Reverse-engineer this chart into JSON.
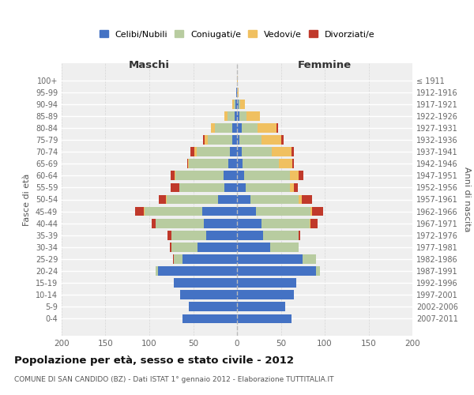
{
  "age_groups": [
    "0-4",
    "5-9",
    "10-14",
    "15-19",
    "20-24",
    "25-29",
    "30-34",
    "35-39",
    "40-44",
    "45-49",
    "50-54",
    "55-59",
    "60-64",
    "65-69",
    "70-74",
    "75-79",
    "80-84",
    "85-89",
    "90-94",
    "95-99",
    "100+"
  ],
  "birth_years": [
    "2007-2011",
    "2002-2006",
    "1997-2001",
    "1992-1996",
    "1987-1991",
    "1982-1986",
    "1977-1981",
    "1972-1976",
    "1967-1971",
    "1962-1966",
    "1957-1961",
    "1952-1956",
    "1947-1951",
    "1942-1946",
    "1937-1941",
    "1932-1936",
    "1927-1931",
    "1922-1926",
    "1917-1921",
    "1912-1916",
    "≤ 1911"
  ],
  "maschi": {
    "celibi": [
      62,
      55,
      65,
      72,
      90,
      62,
      45,
      35,
      38,
      40,
      22,
      14,
      15,
      10,
      8,
      5,
      5,
      3,
      2,
      1,
      0
    ],
    "coniugati": [
      0,
      0,
      0,
      0,
      3,
      10,
      30,
      40,
      55,
      65,
      58,
      52,
      55,
      45,
      38,
      28,
      20,
      8,
      2,
      0,
      0
    ],
    "vedovi": [
      0,
      0,
      0,
      0,
      0,
      0,
      0,
      0,
      0,
      1,
      1,
      0,
      1,
      1,
      3,
      4,
      5,
      3,
      1,
      0,
      0
    ],
    "divorziati": [
      0,
      0,
      0,
      0,
      0,
      1,
      2,
      4,
      4,
      10,
      8,
      10,
      5,
      1,
      4,
      2,
      0,
      0,
      0,
      0,
      0
    ]
  },
  "femmine": {
    "nubili": [
      62,
      55,
      65,
      68,
      90,
      75,
      38,
      30,
      28,
      22,
      15,
      10,
      8,
      6,
      5,
      3,
      5,
      3,
      2,
      0,
      0
    ],
    "coniugate": [
      0,
      0,
      0,
      0,
      5,
      15,
      32,
      40,
      55,
      62,
      55,
      50,
      52,
      42,
      35,
      25,
      18,
      8,
      2,
      0,
      0
    ],
    "vedove": [
      0,
      0,
      0,
      0,
      0,
      0,
      0,
      0,
      1,
      2,
      4,
      5,
      10,
      15,
      22,
      22,
      22,
      15,
      5,
      2,
      1
    ],
    "divorziate": [
      0,
      0,
      0,
      0,
      0,
      0,
      0,
      2,
      8,
      12,
      12,
      4,
      6,
      2,
      3,
      3,
      2,
      0,
      0,
      0,
      0
    ]
  },
  "colors": {
    "celibi": "#4472c4",
    "coniugati": "#b8cca0",
    "vedovi": "#f0c060",
    "divorziati": "#c0392b"
  },
  "legend_labels": [
    "Celibi/Nubili",
    "Coniugati/e",
    "Vedovi/e",
    "Divorziati/e"
  ],
  "title": "Popolazione per età, sesso e stato civile - 2012",
  "subtitle": "COMUNE DI SAN CANDIDO (BZ) - Dati ISTAT 1° gennaio 2012 - Elaborazione TUTTITALIA.IT",
  "xlabel_left": "Maschi",
  "xlabel_right": "Femmine",
  "ylabel_left": "Fasce di età",
  "ylabel_right": "Anni di nascita",
  "xlim": 200,
  "plot_bg": "#efefef",
  "fig_bg": "#ffffff",
  "grid_color": "#ffffff"
}
